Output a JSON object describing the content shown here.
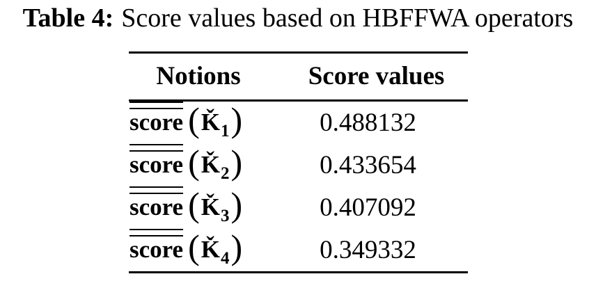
{
  "caption": {
    "label": "Table 4:",
    "text": "Score values based on HBFFWA operators"
  },
  "notation": {
    "open_paren": "(",
    "close_paren": ")"
  },
  "table": {
    "headers": [
      "Notions",
      "Score values"
    ],
    "rows": [
      {
        "fn": "score",
        "symbol": "Ǩ",
        "subscript": "1",
        "value": "0.488132"
      },
      {
        "fn": "score",
        "symbol": "Ǩ",
        "subscript": "2",
        "value": "0.433654"
      },
      {
        "fn": "score",
        "symbol": "Ǩ",
        "subscript": "3",
        "value": "0.407092"
      },
      {
        "fn": "score",
        "symbol": "Ǩ",
        "subscript": "4",
        "value": "0.349332"
      }
    ]
  },
  "colors": {
    "text": "#000000",
    "background": "#ffffff",
    "rule": "#000000"
  }
}
